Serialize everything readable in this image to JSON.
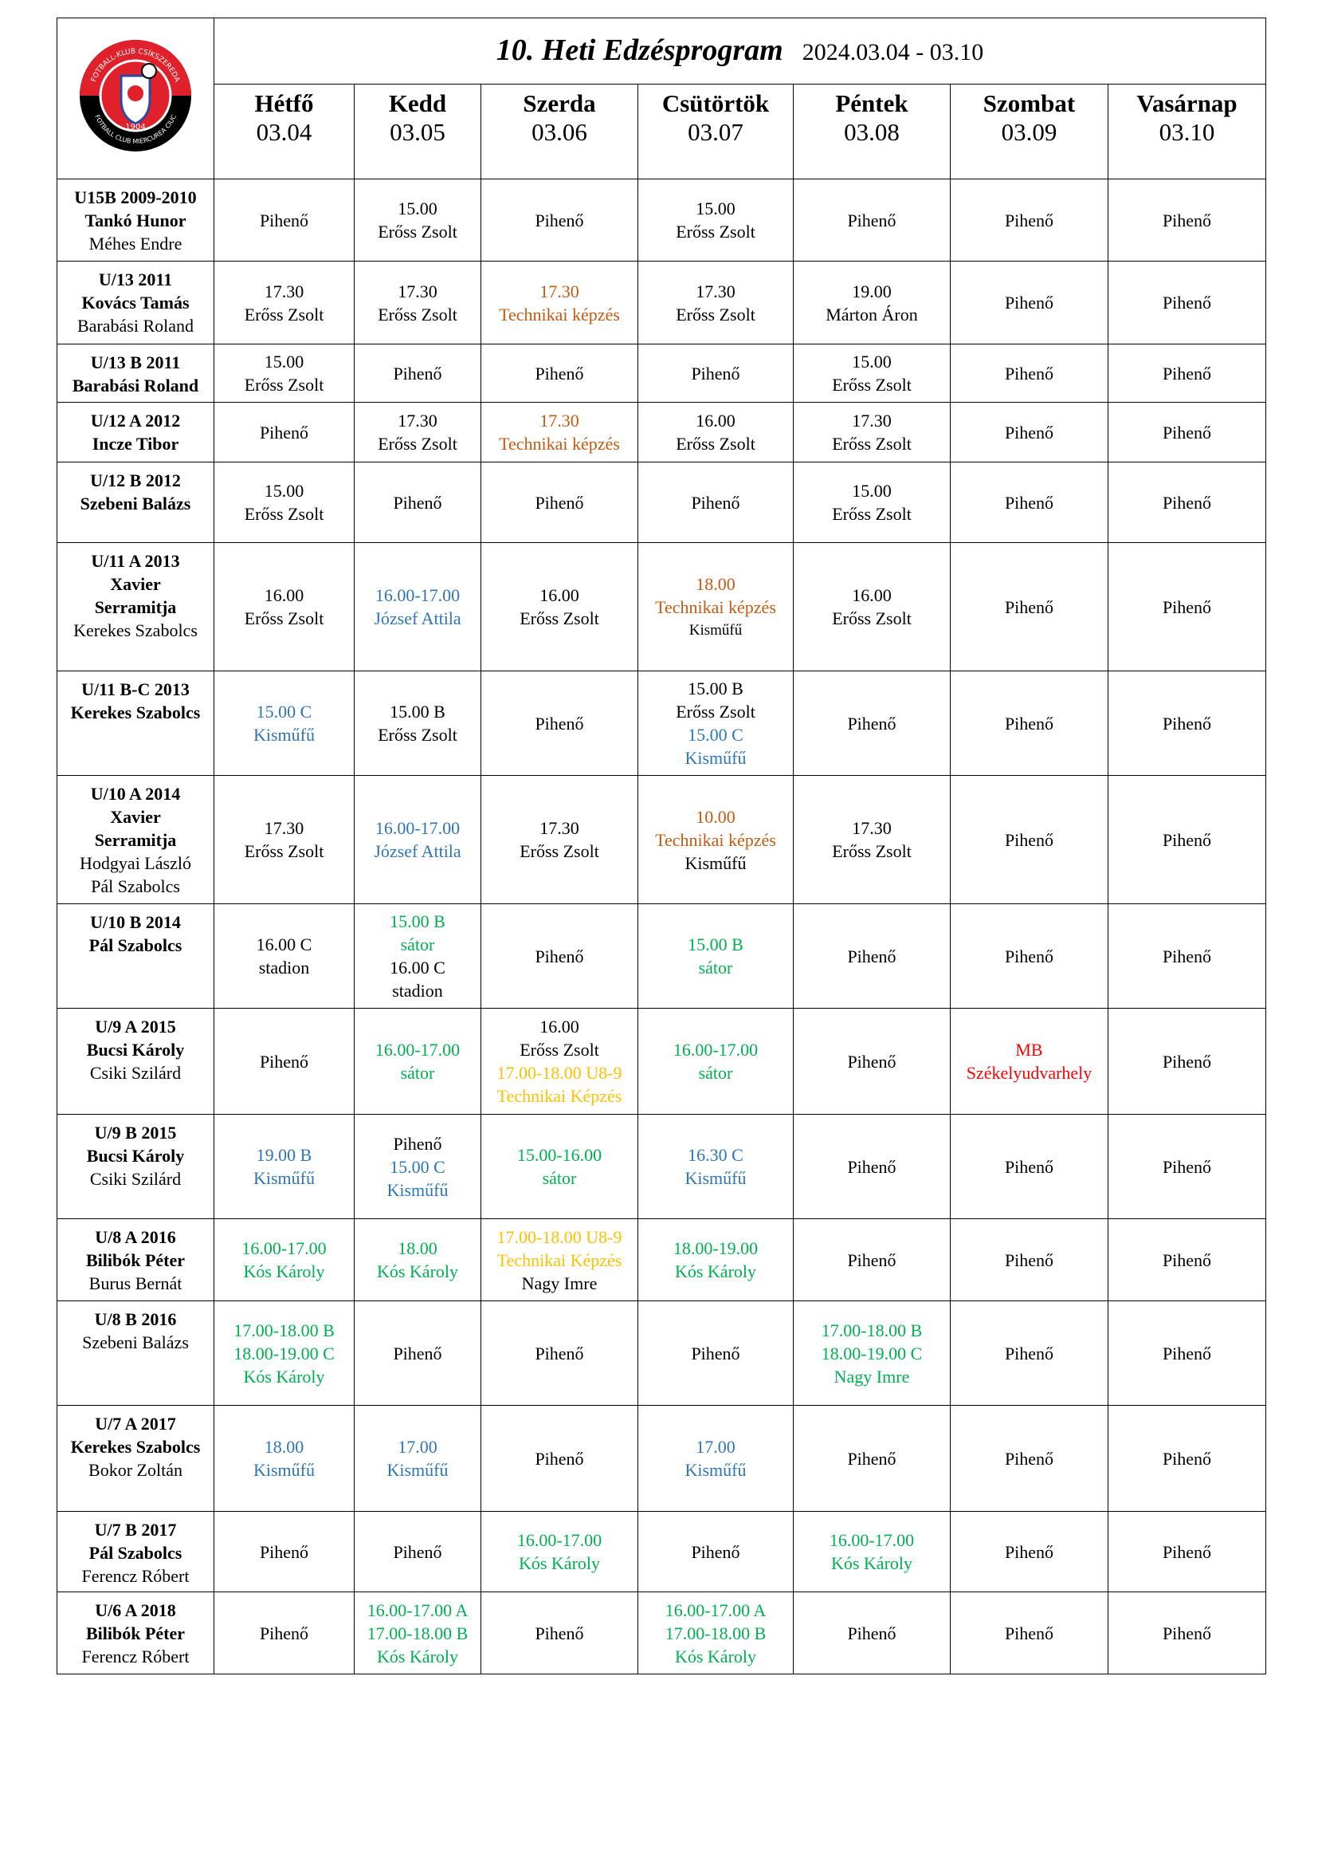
{
  "header": {
    "title": "10. Heti Edzésprogram",
    "dates": "2024.03.04 - 03.10"
  },
  "logo": {
    "top": "FOTBALL-KLUB CSÍKSZEREDA",
    "year": "1904",
    "bottom": "FOTBALL CLUB MIERCUREA CIUC"
  },
  "days": [
    {
      "name": "Hétfő",
      "date": "03.04"
    },
    {
      "name": "Kedd",
      "date": "03.05"
    },
    {
      "name": "Szerda",
      "date": "03.06"
    },
    {
      "name": "Csütörtök",
      "date": "03.07"
    },
    {
      "name": "Péntek",
      "date": "03.08"
    },
    {
      "name": "Szombat",
      "date": "03.09"
    },
    {
      "name": "Vasárnap",
      "date": "03.10"
    }
  ],
  "rows": [
    {
      "group": [
        "U15B 2009-2010",
        "Tankó Hunor"
      ],
      "staff": [
        "Méhes Endre"
      ],
      "cells": [
        [
          "Pihenő"
        ],
        [
          "15.00",
          "Erőss Zsolt"
        ],
        [
          "Pihenő"
        ],
        [
          "15.00",
          "Erőss Zsolt"
        ],
        [
          "Pihenő"
        ],
        [
          "Pihenő"
        ],
        [
          "Pihenő"
        ]
      ]
    },
    {
      "group": [
        "U/13 2011",
        "Kovács Tamás"
      ],
      "staff": [
        "Barabási Roland"
      ],
      "cells": [
        [
          "17.30",
          "Erőss Zsolt"
        ],
        [
          "17.30",
          "Erőss Zsolt"
        ],
        [
          {
            "text": "17.30",
            "color": "#c55a11"
          },
          {
            "text": "Technikai képzés",
            "color": "#c55a11"
          }
        ],
        [
          "17.30",
          "Erőss Zsolt"
        ],
        [
          "19.00",
          "Márton Áron"
        ],
        [
          "Pihenő"
        ],
        [
          "Pihenő"
        ]
      ]
    },
    {
      "group": [
        "U/13 B 2011",
        "Barabási Roland"
      ],
      "staff": [],
      "cells": [
        [
          "15.00",
          "Erőss Zsolt"
        ],
        [
          "Pihenő"
        ],
        [
          "Pihenő"
        ],
        [
          "Pihenő"
        ],
        [
          "15.00",
          "Erőss Zsolt"
        ],
        [
          "Pihenő"
        ],
        [
          "Pihenő"
        ]
      ]
    },
    {
      "group": [
        "U/12 A 2012",
        "Incze Tibor"
      ],
      "staff": [],
      "cells": [
        [
          "Pihenő"
        ],
        [
          "17.30",
          "Erőss Zsolt"
        ],
        [
          {
            "text": "17.30",
            "color": "#c55a11"
          },
          {
            "text": "Technikai képzés",
            "color": "#c55a11"
          }
        ],
        [
          "16.00",
          "Erőss Zsolt"
        ],
        [
          "17.30",
          "Erőss Zsolt"
        ],
        [
          "Pihenő"
        ],
        [
          "Pihenő"
        ]
      ]
    },
    {
      "group": [
        "U/12 B 2012",
        "Szebeni Balázs"
      ],
      "staff": [],
      "cells": [
        [
          "15.00",
          "Erőss Zsolt"
        ],
        [
          "Pihenő"
        ],
        [
          "Pihenő"
        ],
        [
          "Pihenő"
        ],
        [
          "15.00",
          "Erőss Zsolt"
        ],
        [
          "Pihenő"
        ],
        [
          "Pihenő"
        ]
      ]
    },
    {
      "group": [
        "U/11 A 2013",
        "Xavier",
        "Serramitja"
      ],
      "staff": [
        "Kerekes Szabolcs"
      ],
      "cells": [
        [
          "16.00",
          "Erőss Zsolt"
        ],
        [
          {
            "text": "16.00-17.00",
            "color": "#2e75b6"
          },
          {
            "text": "József Attila",
            "color": "#2e75b6"
          }
        ],
        [
          "16.00",
          "Erőss Zsolt"
        ],
        [
          {
            "text": "18.00",
            "color": "#c55a11"
          },
          {
            "text": "Technikai képzés",
            "color": "#c55a11"
          },
          {
            "text": "Kisműfű",
            "size": "small"
          }
        ],
        [
          "16.00",
          "Erőss Zsolt"
        ],
        [
          "Pihenő"
        ],
        [
          "Pihenő"
        ]
      ]
    },
    {
      "group": [
        "U/11 B-C 2013",
        "Kerekes Szabolcs"
      ],
      "staff": [],
      "cells": [
        [
          {
            "text": "15.00 C",
            "color": "#2e75b6"
          },
          {
            "text": "Kisműfű",
            "color": "#2e75b6"
          }
        ],
        [
          "15.00 B",
          "Erőss Zsolt"
        ],
        [
          "Pihenő"
        ],
        [
          "15.00 B",
          "Erőss Zsolt",
          {
            "text": "15.00 C",
            "color": "#2e75b6"
          },
          {
            "text": "Kisműfű",
            "color": "#2e75b6"
          }
        ],
        [
          "Pihenő"
        ],
        [
          "Pihenő"
        ],
        [
          "Pihenő"
        ]
      ]
    },
    {
      "group": [
        "U/10 A 2014",
        "Xavier",
        "Serramitja"
      ],
      "staff": [
        "Hodgyai László",
        "Pál Szabolcs"
      ],
      "cells": [
        [
          "17.30",
          "Erőss Zsolt"
        ],
        [
          {
            "text": "16.00-17.00",
            "color": "#2e75b6"
          },
          {
            "text": "József Attila",
            "color": "#2e75b6"
          }
        ],
        [
          "17.30",
          "Erőss Zsolt"
        ],
        [
          {
            "text": "10.00",
            "color": "#c55a11"
          },
          {
            "text": "Technikai képzés",
            "color": "#c55a11"
          },
          "Kisműfű"
        ],
        [
          "17.30",
          "Erőss Zsolt"
        ],
        [
          "Pihenő"
        ],
        [
          "Pihenő"
        ]
      ]
    },
    {
      "group": [
        "U/10 B 2014",
        "Pál Szabolcs"
      ],
      "staff": [],
      "cells": [
        [
          "16.00 C",
          "stadion"
        ],
        [
          {
            "text": "15.00 B",
            "color": "#00b050"
          },
          {
            "text": "sátor",
            "color": "#00b050"
          },
          "16.00 C",
          "stadion"
        ],
        [
          "Pihenő"
        ],
        [
          {
            "text": "15.00 B",
            "color": "#00b050"
          },
          {
            "text": "sátor",
            "color": "#00b050"
          }
        ],
        [
          "Pihenő"
        ],
        [
          "Pihenő"
        ],
        [
          "Pihenő"
        ]
      ]
    },
    {
      "group": [
        "U/9 A 2015",
        "Bucsi Károly"
      ],
      "staff": [
        "Csiki Szilárd"
      ],
      "cells": [
        [
          "Pihenő"
        ],
        [
          {
            "text": "16.00-17.00",
            "color": "#00b050"
          },
          {
            "text": "sátor",
            "color": "#00b050"
          }
        ],
        [
          "16.00",
          "Erőss Zsolt",
          {
            "text": "17.00-18.00 U8-9",
            "color": "#ffc000"
          },
          {
            "text": "Technikai Képzés",
            "color": "#ffc000"
          }
        ],
        [
          {
            "text": "16.00-17.00",
            "color": "#00b050"
          },
          {
            "text": "sátor",
            "color": "#00b050"
          }
        ],
        [
          "Pihenő"
        ],
        [
          {
            "text": "MB",
            "color": "#ff0000"
          },
          {
            "text": "Székelyudvarhely",
            "color": "#ff0000"
          }
        ],
        [
          "Pihenő"
        ]
      ]
    },
    {
      "group": [
        "U/9 B 2015",
        "Bucsi Károly"
      ],
      "staff": [
        "Csiki Szilárd"
      ],
      "cells": [
        [
          {
            "text": "19.00 B",
            "color": "#2e75b6"
          },
          {
            "text": "Kisműfű",
            "color": "#2e75b6"
          }
        ],
        [
          "Pihenő",
          {
            "text": "15.00 C",
            "color": "#2e75b6"
          },
          {
            "text": "Kisműfű",
            "color": "#2e75b6"
          }
        ],
        [
          {
            "text": "15.00-16.00",
            "color": "#00b050"
          },
          {
            "text": "sátor",
            "color": "#00b050"
          }
        ],
        [
          {
            "text": "16.30 C",
            "color": "#2e75b6"
          },
          {
            "text": "Kisműfű",
            "color": "#2e75b6"
          }
        ],
        [
          "Pihenő"
        ],
        [
          "Pihenő"
        ],
        [
          "Pihenő"
        ]
      ]
    },
    {
      "group": [
        "U/8 A 2016",
        "Bilibók Péter"
      ],
      "staff": [
        "Burus Bernát"
      ],
      "cells": [
        [
          {
            "text": "16.00-17.00",
            "color": "#00b050"
          },
          {
            "text": "Kós Károly",
            "color": "#00b050"
          }
        ],
        [
          {
            "text": "18.00",
            "color": "#00b050"
          },
          {
            "text": "Kós Károly",
            "color": "#00b050"
          }
        ],
        [
          {
            "text": "17.00-18.00 U8-9",
            "color": "#ffc000"
          },
          {
            "text": "Technikai Képzés",
            "color": "#ffc000"
          },
          "Nagy Imre"
        ],
        [
          {
            "text": "18.00-19.00",
            "color": "#00b050"
          },
          {
            "text": "Kós Károly",
            "color": "#00b050"
          }
        ],
        [
          "Pihenő"
        ],
        [
          "Pihenő"
        ],
        [
          "Pihenő"
        ]
      ]
    },
    {
      "group": [
        "U/8 B 2016"
      ],
      "staff": [
        "Szebeni Balázs"
      ],
      "cells": [
        [
          {
            "text": "17.00-18.00 B",
            "color": "#00b050"
          },
          {
            "text": "18.00-19.00 C",
            "color": "#00b050"
          },
          {
            "text": "Kós Károly",
            "color": "#00b050"
          }
        ],
        [
          "Pihenő"
        ],
        [
          "Pihenő"
        ],
        [
          "Pihenő"
        ],
        [
          {
            "text": "17.00-18.00 B",
            "color": "#00b050"
          },
          {
            "text": "18.00-19.00 C",
            "color": "#00b050"
          },
          {
            "text": "Nagy Imre",
            "color": "#00b050"
          }
        ],
        [
          "Pihenő"
        ],
        [
          "Pihenő"
        ]
      ]
    },
    {
      "group": [
        "U/7 A 2017",
        "Kerekes Szabolcs"
      ],
      "staff": [
        "Bokor Zoltán"
      ],
      "cells": [
        [
          {
            "text": "18.00",
            "color": "#2e75b6"
          },
          {
            "text": "Kisműfű",
            "color": "#2e75b6"
          }
        ],
        [
          {
            "text": "17.00",
            "color": "#2e75b6"
          },
          {
            "text": "Kisműfű",
            "color": "#2e75b6"
          }
        ],
        [
          "Pihenő"
        ],
        [
          {
            "text": "17.00",
            "color": "#2e75b6"
          },
          {
            "text": "Kisműfű",
            "color": "#2e75b6"
          }
        ],
        [
          "Pihenő"
        ],
        [
          "Pihenő"
        ],
        [
          "Pihenő"
        ]
      ]
    },
    {
      "group": [
        "U/7 B 2017",
        "Pál Szabolcs"
      ],
      "staff": [
        "Ferencz Róbert"
      ],
      "cells": [
        [
          "Pihenő"
        ],
        [
          "Pihenő"
        ],
        [
          {
            "text": "16.00-17.00",
            "color": "#00b050"
          },
          {
            "text": "Kós Károly",
            "color": "#00b050"
          }
        ],
        [
          "Pihenő"
        ],
        [
          {
            "text": "16.00-17.00",
            "color": "#00b050"
          },
          {
            "text": "Kós Károly",
            "color": "#00b050"
          }
        ],
        [
          "Pihenő"
        ],
        [
          "Pihenő"
        ]
      ]
    },
    {
      "group": [
        "U/6 A 2018",
        "Bilibók Péter"
      ],
      "staff": [
        "Ferencz Róbert"
      ],
      "cells": [
        [
          "Pihenő"
        ],
        [
          {
            "text": "16.00-17.00 A",
            "color": "#00b050"
          },
          {
            "text": "17.00-18.00 B",
            "color": "#00b050"
          },
          {
            "text": "Kós Károly",
            "color": "#00b050"
          }
        ],
        [
          "Pihenő"
        ],
        [
          {
            "text": "16.00-17.00 A",
            "color": "#00b050"
          },
          {
            "text": "17.00-18.00 B",
            "color": "#00b050"
          },
          {
            "text": "Kós Károly",
            "color": "#00b050"
          }
        ],
        [
          "Pihenő"
        ],
        [
          "Pihenő"
        ],
        [
          "Pihenő"
        ]
      ]
    }
  ]
}
